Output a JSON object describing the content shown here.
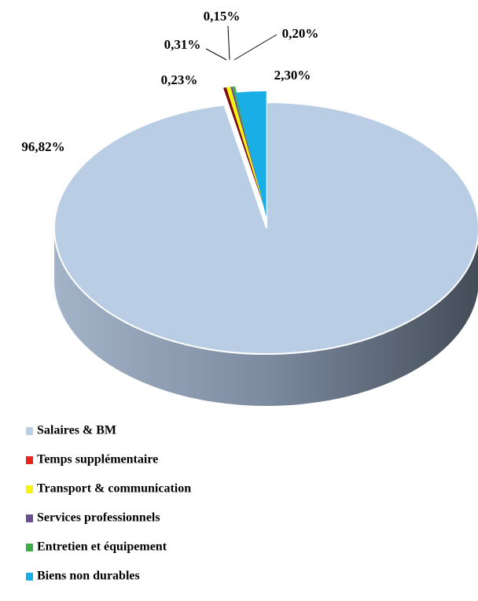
{
  "chart_data": {
    "type": "pie",
    "categories": [
      "Salaires & BM",
      "Temps supplémentaire",
      "Transport & communication",
      "Services professionnels",
      "Entretien et équipement",
      "Biens non durables"
    ],
    "values": [
      96.82,
      0.23,
      0.31,
      0.15,
      0.2,
      2.3
    ],
    "value_labels": [
      "96,82%",
      "0,23%",
      "0,31%",
      "0,15%",
      "0,20%",
      "2,30%"
    ],
    "colors": [
      "#b9cde5",
      "#e8241c",
      "#f5f50a",
      "#6a4f8c",
      "#3fae49",
      "#1aaee6"
    ],
    "legend": "bottom"
  }
}
